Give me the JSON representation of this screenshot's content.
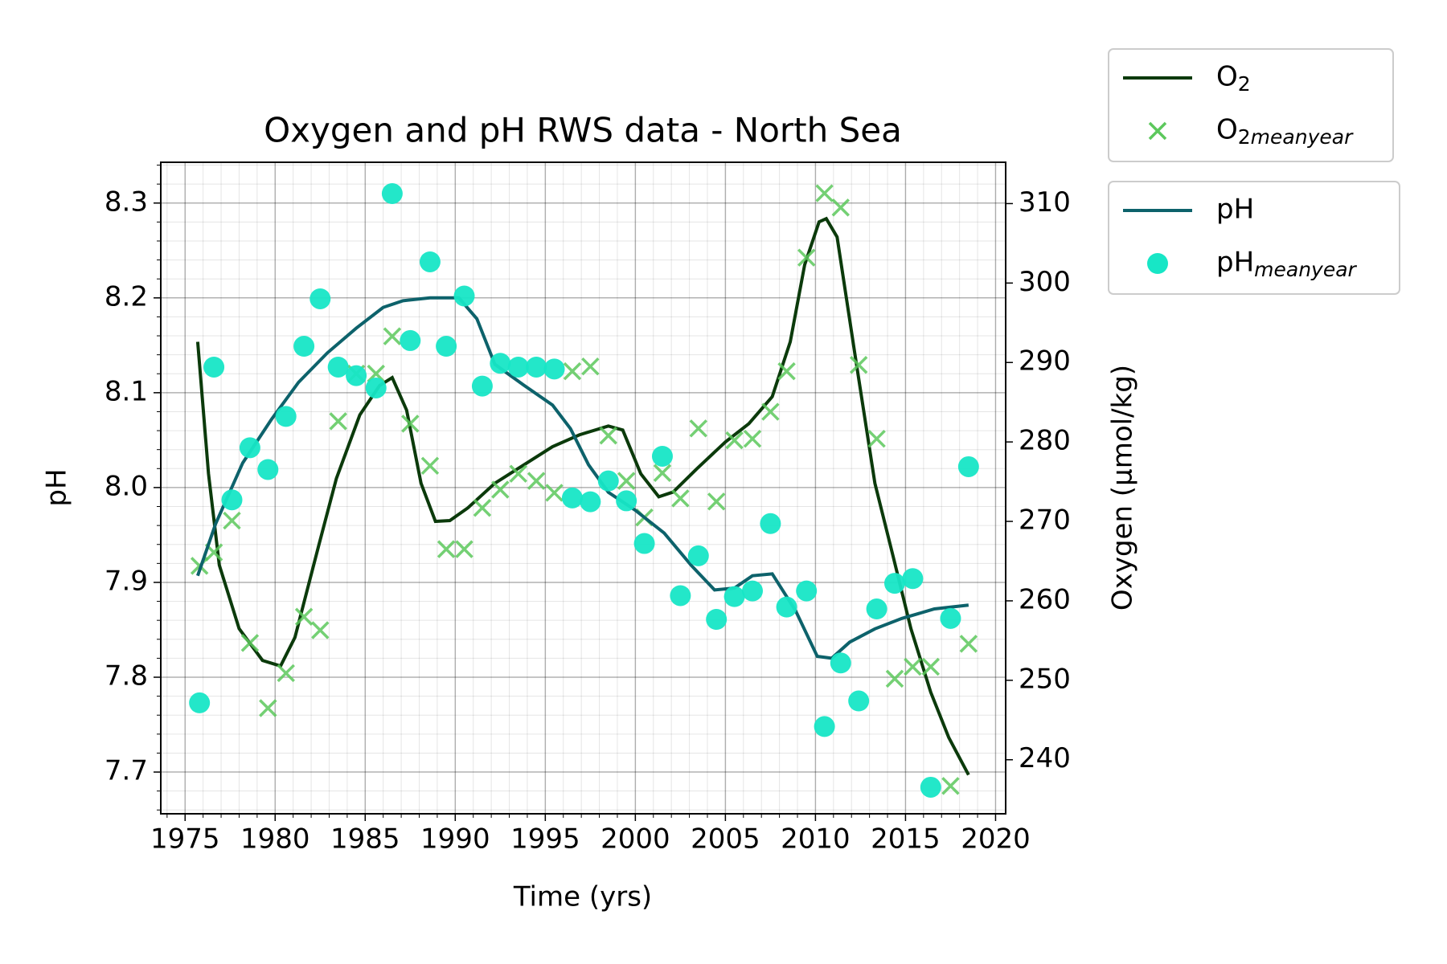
{
  "chart_data": {
    "type": "line",
    "title": "Oxygen and pH RWS data - North Sea",
    "xlabel": "Time (yrs)",
    "ylabel": "pH",
    "y2label": "Oxygen (µmol/kg)",
    "xlim": [
      1973.65,
      2020.56
    ],
    "ylim": [
      7.656,
      8.343
    ],
    "y2lim": [
      233.2,
      315.2
    ],
    "xticks": [
      1975,
      1980,
      1985,
      1990,
      1995,
      2000,
      2005,
      2010,
      2015,
      2020
    ],
    "yticks": [
      7.7,
      7.8,
      7.9,
      {
        "value": 8,
        "label": "8.0"
      },
      8.1,
      8.2,
      8.3
    ],
    "y2ticks": [
      240,
      250,
      260,
      270,
      280,
      290,
      300,
      310
    ],
    "grid": true,
    "minor_xstep": 1,
    "minor_ystep": 0.02,
    "legend": "outside upper right",
    "series": [
      {
        "name": "O2",
        "type": "line",
        "axis": "y2",
        "color": "#0b3a0b",
        "x": [
          1975.7,
          1976.3,
          1976.9,
          1978.0,
          1979.3,
          1980.3,
          1981.1,
          1982.4,
          1983.4,
          1984.7,
          1985.8,
          1986.5,
          1987.3,
          1988.1,
          1988.9,
          1989.7,
          1990.7,
          1992.2,
          1993.8,
          1995.4,
          1996.9,
          1998.5,
          1999.3,
          2000.3,
          2001.3,
          2002.1,
          2003.4,
          2005.0,
          2006.3,
          2007.6,
          2008.6,
          2009.4,
          2010.2,
          2010.6,
          2011.2,
          2012.2,
          2013.3,
          2014.3,
          2015.3,
          2016.4,
          2017.4,
          2018.5
        ],
        "values": [
          292.6,
          276.0,
          264.5,
          256.5,
          252.5,
          251.8,
          255.4,
          266.8,
          275.4,
          283.4,
          287.1,
          288.1,
          284.0,
          274.8,
          270.0,
          270.1,
          271.7,
          274.8,
          277.1,
          279.4,
          280.9,
          282.0,
          281.5,
          276.0,
          273.1,
          273.7,
          276.6,
          280.0,
          282.3,
          285.7,
          292.6,
          302.3,
          307.7,
          308.1,
          305.8,
          290.9,
          274.8,
          265.7,
          256.5,
          248.5,
          242.8,
          238.1
        ]
      },
      {
        "name": "O2meanyear",
        "type": "scatter",
        "marker": "x",
        "axis": "y2",
        "color": "#5cc85c",
        "x": [
          1975.8,
          1976.6,
          1977.6,
          1978.6,
          1979.6,
          1980.6,
          1981.6,
          1982.5,
          1983.5,
          1984.5,
          1985.6,
          1986.5,
          1987.5,
          1988.6,
          1989.5,
          1990.5,
          1991.5,
          1992.5,
          1993.5,
          1994.5,
          1995.5,
          1996.5,
          1997.5,
          1998.5,
          1999.5,
          2000.5,
          2001.5,
          2002.5,
          2003.5,
          2004.5,
          2005.5,
          2006.5,
          2007.5,
          2008.4,
          2009.5,
          2010.5,
          2011.4,
          2012.4,
          2013.4,
          2014.4,
          2015.4,
          2016.4,
          2017.5,
          2018.5
        ],
        "values": [
          264.4,
          266.1,
          270.1,
          254.7,
          246.5,
          250.9,
          258.0,
          256.3,
          282.6,
          288.6,
          288.6,
          293.3,
          282.3,
          277.0,
          266.5,
          266.5,
          271.7,
          274.0,
          276.0,
          275.1,
          273.6,
          288.9,
          289.5,
          280.8,
          275.1,
          270.5,
          276.1,
          272.9,
          281.7,
          272.5,
          280.2,
          280.4,
          283.8,
          288.9,
          303.2,
          311.3,
          309.5,
          289.7,
          280.4,
          250.2,
          251.7,
          251.7,
          236.7,
          254.6
        ]
      },
      {
        "name": "pH",
        "type": "line",
        "axis": "y",
        "color": "#0d626b",
        "x": [
          1975.7,
          1976.7,
          1978.2,
          1979.8,
          1981.3,
          1982.9,
          1984.5,
          1986.0,
          1987.1,
          1988.6,
          1990.2,
          1991.2,
          1992.2,
          1993.8,
          1995.4,
          1996.4,
          1997.4,
          1998.5,
          2000.0,
          2001.6,
          2003.1,
          2004.4,
          2005.5,
          2006.5,
          2007.6,
          2008.9,
          2010.1,
          2010.9,
          2011.9,
          2013.3,
          2014.8,
          2016.6,
          2018.5
        ],
        "values": [
          7.907,
          7.962,
          8.026,
          8.072,
          8.111,
          8.142,
          8.168,
          8.19,
          8.197,
          8.2,
          8.2,
          8.178,
          8.13,
          8.108,
          8.087,
          8.062,
          8.024,
          7.995,
          7.976,
          7.952,
          7.918,
          7.892,
          7.894,
          7.907,
          7.909,
          7.87,
          7.822,
          7.82,
          7.837,
          7.851,
          7.862,
          7.872,
          7.876
        ]
      },
      {
        "name": "pHmeanyear",
        "type": "scatter",
        "marker": "o",
        "axis": "y",
        "color": "#17e6c6",
        "x": [
          1975.8,
          1976.6,
          1977.6,
          1978.6,
          1979.6,
          1980.6,
          1981.6,
          1982.5,
          1983.5,
          1984.5,
          1985.6,
          1986.5,
          1987.5,
          1988.6,
          1989.5,
          1990.5,
          1991.5,
          1992.5,
          1993.5,
          1994.5,
          1995.5,
          1996.5,
          1997.5,
          1998.5,
          1999.5,
          2000.5,
          2001.5,
          2002.5,
          2003.5,
          2004.5,
          2005.5,
          2006.5,
          2007.5,
          2008.4,
          2009.5,
          2010.5,
          2011.4,
          2012.4,
          2013.4,
          2014.4,
          2015.4,
          2016.4,
          2017.5,
          2018.5
        ],
        "values": [
          7.773,
          8.127,
          7.987,
          8.042,
          8.019,
          8.075,
          8.149,
          8.199,
          8.127,
          8.118,
          8.105,
          8.31,
          8.155,
          8.238,
          8.149,
          8.202,
          8.107,
          8.131,
          8.127,
          8.127,
          8.125,
          7.989,
          7.985,
          8.007,
          7.986,
          7.941,
          8.033,
          7.886,
          7.928,
          7.861,
          7.885,
          7.891,
          7.962,
          7.874,
          7.891,
          7.748,
          7.815,
          7.775,
          7.872,
          7.899,
          7.904,
          7.684,
          7.862,
          8.022
        ]
      }
    ]
  }
}
